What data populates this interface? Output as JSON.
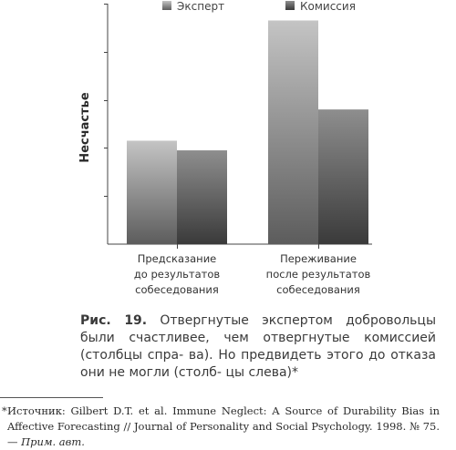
{
  "chart_data": {
    "type": "bar",
    "categories": [
      [
        "Предсказание",
        "до результатов",
        "собеседования"
      ],
      [
        "Переживание",
        "после результатов",
        "собеседования"
      ]
    ],
    "series": [
      {
        "name": "Эксперт",
        "values": [
          2.15,
          4.65
        ]
      },
      {
        "name": "Комиссия",
        "values": [
          1.95,
          2.8
        ]
      }
    ],
    "ylabel": "Несчастье",
    "ylim": [
      0,
      5
    ],
    "y_ticks": 5,
    "legend_position": "top",
    "grid": false,
    "colors": {
      "expert_top": "#c4c4c4",
      "expert_bottom": "#5c5c5c",
      "commission_top": "#8e8e8e",
      "commission_bottom": "#3a3a3a",
      "axis": "#444444"
    }
  },
  "caption": {
    "figure_label": "Рис. 19.",
    "lines": [
      "Отвергнутые экспертом добровольцы были",
      "счастливее, чем отвергнутые комиссией (столбцы спра-",
      "ва). Но предвидеть этого до отказа они не могли (столб-",
      "цы слева)*"
    ]
  },
  "footnote": {
    "marker": "*",
    "lines": [
      "Источник: Gilbert D.T. et al. Immune Neglect: A Source of Durability Bias in",
      "Affective Forecasting // Journal of Personality and Social Psychology. 1998."
    ],
    "last_line": "№ 75. — ",
    "note": "Прим. авт."
  }
}
